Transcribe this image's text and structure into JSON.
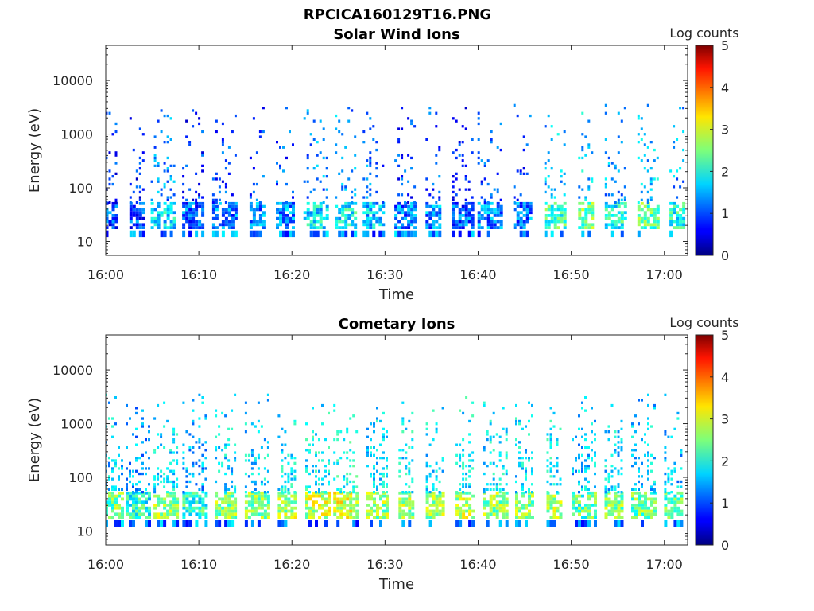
{
  "figure_title": "RPCICA160129T16.PNG",
  "colors": {
    "colormap": "jet",
    "axis": "#262626",
    "background": "#ffffff"
  },
  "colorbar": {
    "label": "Log counts",
    "ticks": [
      "0",
      "1",
      "2",
      "3",
      "4",
      "5"
    ],
    "range": [
      0,
      5
    ]
  },
  "chart_data": [
    {
      "type": "heatmap",
      "title": "Solar Wind Ions",
      "xlabel": "Time",
      "ylabel": "Energy (eV)",
      "xticks": [
        "16:00",
        "16:10",
        "16:20",
        "16:30",
        "16:40",
        "16:50",
        "17:00"
      ],
      "yticks": [
        "10",
        "100",
        "1000",
        "10000"
      ],
      "xlim_minutes": [
        0,
        62.5
      ],
      "ylim_eV": [
        5.5,
        45000
      ],
      "yscale": "log",
      "clim": [
        0,
        5
      ],
      "bursts": [
        {
          "t": 0.3,
          "c": 1.0
        },
        {
          "t": 3.4,
          "c": 1.0
        },
        {
          "t": 6.2,
          "c": 1.8
        },
        {
          "t": 9.4,
          "c": 1.1
        },
        {
          "t": 12.8,
          "c": 1.2
        },
        {
          "t": 16.3,
          "c": 1.3
        },
        {
          "t": 19.3,
          "c": 1.3
        },
        {
          "t": 22.6,
          "c": 1.8
        },
        {
          "t": 25.8,
          "c": 1.9
        },
        {
          "t": 28.8,
          "c": 1.6
        },
        {
          "t": 32.2,
          "c": 1.2
        },
        {
          "t": 35.2,
          "c": 1.3
        },
        {
          "t": 38.4,
          "c": 1.1
        },
        {
          "t": 41.3,
          "c": 1.3
        },
        {
          "t": 44.8,
          "c": 1.2
        },
        {
          "t": 48.3,
          "c": 2.2
        },
        {
          "t": 51.6,
          "c": 2.4
        },
        {
          "t": 54.8,
          "c": 2.0
        },
        {
          "t": 58.3,
          "c": 2.3
        },
        {
          "t": 61.4,
          "c": 2.0
        }
      ]
    },
    {
      "type": "heatmap",
      "title": "Cometary Ions",
      "xlabel": "Time",
      "ylabel": "Energy (eV)",
      "xticks": [
        "16:00",
        "16:10",
        "16:20",
        "16:30",
        "16:40",
        "16:50",
        "17:00"
      ],
      "yticks": [
        "10",
        "100",
        "1000",
        "10000"
      ],
      "xlim_minutes": [
        0,
        62.5
      ],
      "ylim_eV": [
        5.5,
        45000
      ],
      "yscale": "log",
      "clim": [
        0,
        5
      ],
      "bursts": [
        {
          "t": 0.6,
          "c": 2.4
        },
        {
          "t": 3.5,
          "c": 2.0
        },
        {
          "t": 6.5,
          "c": 2.6
        },
        {
          "t": 9.6,
          "c": 2.1
        },
        {
          "t": 12.9,
          "c": 2.5
        },
        {
          "t": 16.3,
          "c": 2.5
        },
        {
          "t": 19.5,
          "c": 2.7
        },
        {
          "t": 22.8,
          "c": 2.8
        },
        {
          "t": 25.8,
          "c": 2.9
        },
        {
          "t": 29.2,
          "c": 2.6
        },
        {
          "t": 32.3,
          "c": 2.7
        },
        {
          "t": 35.4,
          "c": 2.6
        },
        {
          "t": 38.6,
          "c": 2.7
        },
        {
          "t": 41.9,
          "c": 2.6
        },
        {
          "t": 45.0,
          "c": 2.6
        },
        {
          "t": 48.2,
          "c": 2.7
        },
        {
          "t": 51.4,
          "c": 2.3
        },
        {
          "t": 54.6,
          "c": 2.5
        },
        {
          "t": 57.8,
          "c": 2.4
        },
        {
          "t": 61.0,
          "c": 2.3
        }
      ]
    }
  ]
}
